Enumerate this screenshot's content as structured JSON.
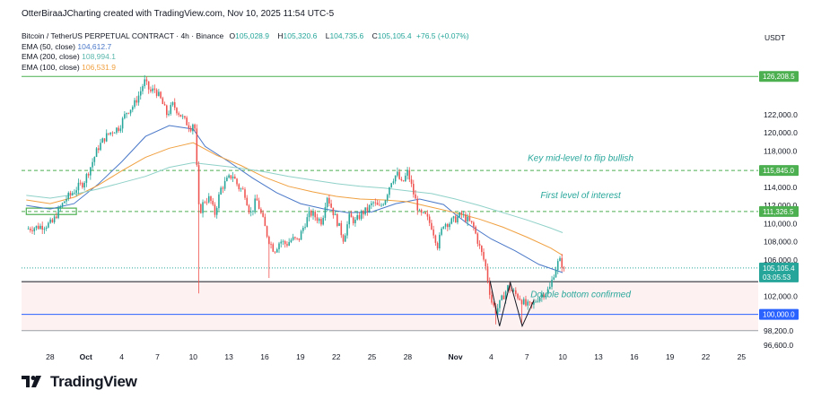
{
  "header": {
    "title_line": "OtterBiraaJCharting created with TradingView.com, Nov 10, 2025 11:54 UTC-5",
    "symbol_line": "Bitcoin / TetherUS PERPETUAL CONTRACT · 4h · Binance",
    "ohlc": [
      {
        "label": "O",
        "value": "105,028.9"
      },
      {
        "label": "H",
        "value": "105,320.6"
      },
      {
        "label": "L",
        "value": "104,735.6"
      },
      {
        "label": "C",
        "value": "105,105.4"
      }
    ],
    "change": "+76.5 (+0.07%)",
    "currency": "USDT"
  },
  "indicators": [
    {
      "label": "EMA (50, close)",
      "value": "104,612.7",
      "color": "#4a78c8"
    },
    {
      "label": "EMA (200, close)",
      "value": "108,994.1",
      "color": "#8fd1c8"
    },
    {
      "label": "EMA (100, close)",
      "value": "106,531.9",
      "color": "#f0a040"
    }
  ],
  "footer": {
    "brand": "TradingView"
  },
  "chart_data": {
    "type": "candlestick",
    "symbol": "BTCUSDT.P",
    "timeframe": "4h",
    "ylim": [
      96600,
      128700
    ],
    "y_ticks": [
      {
        "value": 98200,
        "label": "98,200.0"
      },
      {
        "value": 100000,
        "label": "100,000.0"
      },
      {
        "value": 102000,
        "label": "102,000.0"
      },
      {
        "value": 104000,
        "label": "104,000.0"
      },
      {
        "value": 106000,
        "label": "106,000.0"
      },
      {
        "value": 108000,
        "label": "108,000.0"
      },
      {
        "value": 110000,
        "label": "110,000.0"
      },
      {
        "value": 112000,
        "label": "112,000.0"
      },
      {
        "value": 114000,
        "label": "114,000.0"
      },
      {
        "value": 116000,
        "label": "116,000.0"
      },
      {
        "value": 118000,
        "label": "118,000.0"
      },
      {
        "value": 120000,
        "label": "120,000.0"
      },
      {
        "value": 122000,
        "label": "122,000.0"
      },
      {
        "value": 96600,
        "label": "96,600.0"
      }
    ],
    "x_ticks": [
      {
        "day": 28,
        "label": "28",
        "bold": false
      },
      {
        "day": 31,
        "label": "Oct",
        "bold": true
      },
      {
        "day": 34,
        "label": "4",
        "bold": false
      },
      {
        "day": 37,
        "label": "7",
        "bold": false
      },
      {
        "day": 40,
        "label": "10",
        "bold": false
      },
      {
        "day": 43,
        "label": "13",
        "bold": false
      },
      {
        "day": 46,
        "label": "16",
        "bold": false
      },
      {
        "day": 49,
        "label": "19",
        "bold": false
      },
      {
        "day": 52,
        "label": "22",
        "bold": false
      },
      {
        "day": 55,
        "label": "25",
        "bold": false
      },
      {
        "day": 58,
        "label": "28",
        "bold": false
      },
      {
        "day": 62,
        "label": "Nov",
        "bold": true
      },
      {
        "day": 65,
        "label": "4",
        "bold": false
      },
      {
        "day": 68,
        "label": "7",
        "bold": false
      },
      {
        "day": 71,
        "label": "10",
        "bold": false
      },
      {
        "day": 74,
        "label": "13",
        "bold": false
      },
      {
        "day": 77,
        "label": "16",
        "bold": false
      },
      {
        "day": 80,
        "label": "19",
        "bold": false
      },
      {
        "day": 83,
        "label": "22",
        "bold": false
      },
      {
        "day": 86,
        "label": "25",
        "bold": false
      }
    ],
    "price_path": [
      [
        26,
        109400
      ],
      [
        26.8,
        109600
      ],
      [
        27.6,
        109800
      ],
      [
        28.2,
        110100
      ],
      [
        28.6,
        111200
      ],
      [
        29.3,
        112700
      ],
      [
        29.8,
        113300
      ],
      [
        30.3,
        114000
      ],
      [
        30.8,
        114500
      ],
      [
        31.4,
        116300
      ],
      [
        32,
        118300
      ],
      [
        32.6,
        119500
      ],
      [
        33.2,
        120200
      ],
      [
        33.8,
        120600
      ],
      [
        34.4,
        122300
      ],
      [
        35,
        123000
      ],
      [
        35.5,
        124300
      ],
      [
        35.9,
        125700
      ],
      [
        36.4,
        124500
      ],
      [
        36.8,
        124800
      ],
      [
        37.3,
        123600
      ],
      [
        37.8,
        122000
      ],
      [
        38.3,
        123100
      ],
      [
        38.8,
        122200
      ],
      [
        39.3,
        121300
      ],
      [
        39.8,
        120600
      ],
      [
        40.1,
        121400
      ],
      [
        40.5,
        111000
      ],
      [
        40.9,
        112500
      ],
      [
        41.4,
        112800
      ],
      [
        41.8,
        111000
      ],
      [
        42.3,
        113800
      ],
      [
        42.8,
        114700
      ],
      [
        43.3,
        115400
      ],
      [
        43.8,
        114000
      ],
      [
        44.3,
        113500
      ],
      [
        44.8,
        111000
      ],
      [
        45.3,
        112700
      ],
      [
        45.8,
        110600
      ],
      [
        46.3,
        108300
      ],
      [
        46.8,
        107000
      ],
      [
        47.3,
        108100
      ],
      [
        47.8,
        107700
      ],
      [
        48.3,
        108300
      ],
      [
        48.8,
        108100
      ],
      [
        49.3,
        109800
      ],
      [
        49.8,
        111200
      ],
      [
        50.3,
        110700
      ],
      [
        50.8,
        110200
      ],
      [
        51.2,
        113200
      ],
      [
        51.7,
        111400
      ],
      [
        52.2,
        109800
      ],
      [
        52.6,
        108300
      ],
      [
        53.1,
        110700
      ],
      [
        53.6,
        110200
      ],
      [
        54.1,
        111100
      ],
      [
        54.6,
        111500
      ],
      [
        55.1,
        112300
      ],
      [
        55.6,
        111700
      ],
      [
        56.1,
        112700
      ],
      [
        56.6,
        114700
      ],
      [
        57.1,
        115500
      ],
      [
        57.5,
        114300
      ],
      [
        58,
        115700
      ],
      [
        58.5,
        113200
      ],
      [
        59,
        111000
      ],
      [
        59.5,
        110800
      ],
      [
        60,
        109700
      ],
      [
        60.5,
        107600
      ],
      [
        61,
        110000
      ],
      [
        61.5,
        110100
      ],
      [
        62,
        110500
      ],
      [
        62.5,
        111000
      ],
      [
        63,
        110400
      ],
      [
        63.5,
        109700
      ],
      [
        64,
        107500
      ],
      [
        64.5,
        105500
      ],
      [
        65,
        101500
      ],
      [
        65.4,
        100300
      ],
      [
        65.9,
        101700
      ],
      [
        66.4,
        103000
      ],
      [
        66.9,
        102400
      ],
      [
        67.4,
        101800
      ],
      [
        67.9,
        101000
      ],
      [
        68.4,
        100900
      ],
      [
        68.9,
        101800
      ],
      [
        69.4,
        102300
      ],
      [
        69.9,
        102800
      ],
      [
        70.3,
        104700
      ],
      [
        70.7,
        106000
      ],
      [
        71.1,
        105105
      ]
    ],
    "candle_count": 268,
    "emas": [
      {
        "name": "EMA (50, close)",
        "value": 104612.7,
        "color": "#4a78c8",
        "points": [
          [
            26,
            112000
          ],
          [
            28,
            111600
          ],
          [
            30,
            112200
          ],
          [
            32,
            114300
          ],
          [
            34,
            116800
          ],
          [
            36,
            119600
          ],
          [
            38,
            120800
          ],
          [
            40,
            120400
          ],
          [
            41,
            118500
          ],
          [
            43,
            116800
          ],
          [
            45,
            115000
          ],
          [
            47,
            113400
          ],
          [
            49,
            112200
          ],
          [
            51,
            111600
          ],
          [
            53,
            111200
          ],
          [
            55,
            111300
          ],
          [
            57,
            112200
          ],
          [
            59,
            112700
          ],
          [
            61,
            112100
          ],
          [
            62,
            111000
          ],
          [
            63,
            110000
          ],
          [
            65,
            108300
          ],
          [
            67,
            107000
          ],
          [
            69,
            105500
          ],
          [
            71,
            104600
          ]
        ]
      },
      {
        "name": "EMA (100, close)",
        "value": 106531.9,
        "color": "#f0a040",
        "points": [
          [
            26,
            112600
          ],
          [
            28,
            112200
          ],
          [
            30,
            112900
          ],
          [
            32,
            114200
          ],
          [
            34,
            115800
          ],
          [
            36,
            117300
          ],
          [
            38,
            118300
          ],
          [
            40,
            118900
          ],
          [
            42,
            117500
          ],
          [
            44,
            116400
          ],
          [
            46,
            115100
          ],
          [
            48,
            114100
          ],
          [
            50,
            113500
          ],
          [
            52,
            113000
          ],
          [
            54,
            112700
          ],
          [
            56,
            112600
          ],
          [
            58,
            112400
          ],
          [
            60,
            111800
          ],
          [
            62,
            111200
          ],
          [
            64,
            110500
          ],
          [
            66,
            109600
          ],
          [
            68,
            108500
          ],
          [
            70,
            107300
          ],
          [
            71,
            106500
          ]
        ]
      },
      {
        "name": "EMA (200, close)",
        "value": 108994.1,
        "color": "#8fd1c8",
        "points": [
          [
            26,
            113100
          ],
          [
            28,
            112800
          ],
          [
            30,
            113200
          ],
          [
            32,
            113800
          ],
          [
            34,
            114500
          ],
          [
            36,
            115200
          ],
          [
            38,
            116200
          ],
          [
            40,
            116700
          ],
          [
            42,
            116400
          ],
          [
            44,
            116100
          ],
          [
            46,
            115700
          ],
          [
            48,
            115200
          ],
          [
            50,
            114800
          ],
          [
            52,
            114400
          ],
          [
            54,
            114100
          ],
          [
            56,
            113900
          ],
          [
            58,
            113600
          ],
          [
            60,
            113300
          ],
          [
            62,
            112700
          ],
          [
            64,
            112000
          ],
          [
            66,
            111200
          ],
          [
            68,
            110400
          ],
          [
            70,
            109500
          ],
          [
            71,
            109000
          ]
        ]
      }
    ],
    "levels": [
      {
        "value": 126208.5,
        "label": "126,208.5",
        "color": "#4caf50",
        "style": "solid"
      },
      {
        "value": 115845.0,
        "label": "115,845.0",
        "color": "#4caf50",
        "style": "dashed"
      },
      {
        "value": 111326.5,
        "label": "111,326.5",
        "color": "#4caf50",
        "style": "dashed"
      },
      {
        "value": 100000.0,
        "label": "100,000.0",
        "color": "#2962ff",
        "style": "solid"
      }
    ],
    "support_line": 103600,
    "support_zone": [
      98200,
      103600
    ],
    "demand_box": {
      "from": 26,
      "to": 30.2,
      "low": 111000,
      "high": 111700
    },
    "current_price": {
      "value": 105105.4,
      "label": "105,105.4",
      "countdown": "03:05:53"
    },
    "double_bottom": [
      [
        64.9,
        103700
      ],
      [
        65.7,
        98700
      ],
      [
        66.6,
        103500
      ],
      [
        67.6,
        98700
      ],
      [
        68.6,
        101600
      ]
    ],
    "annotations": [
      {
        "text": "Key mid-level to flip bullish",
        "day": 72.5,
        "price": 116900
      },
      {
        "text": "First level of interest",
        "day": 72.5,
        "price": 112800
      },
      {
        "text": "Double bottom confirmed",
        "day": 72.5,
        "price": 101900
      }
    ]
  }
}
